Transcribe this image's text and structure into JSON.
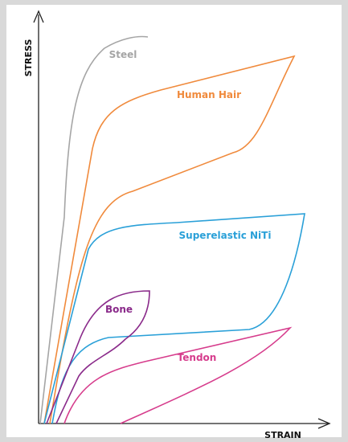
{
  "axes": {
    "y_label": "STRESS",
    "x_label": "STRAIN"
  },
  "curves": [
    {
      "label": "Steel"
    },
    {
      "label": "Human Hair"
    },
    {
      "label": "Superelastic NiTi"
    },
    {
      "label": "Bone"
    },
    {
      "label": "Tendon"
    }
  ]
}
